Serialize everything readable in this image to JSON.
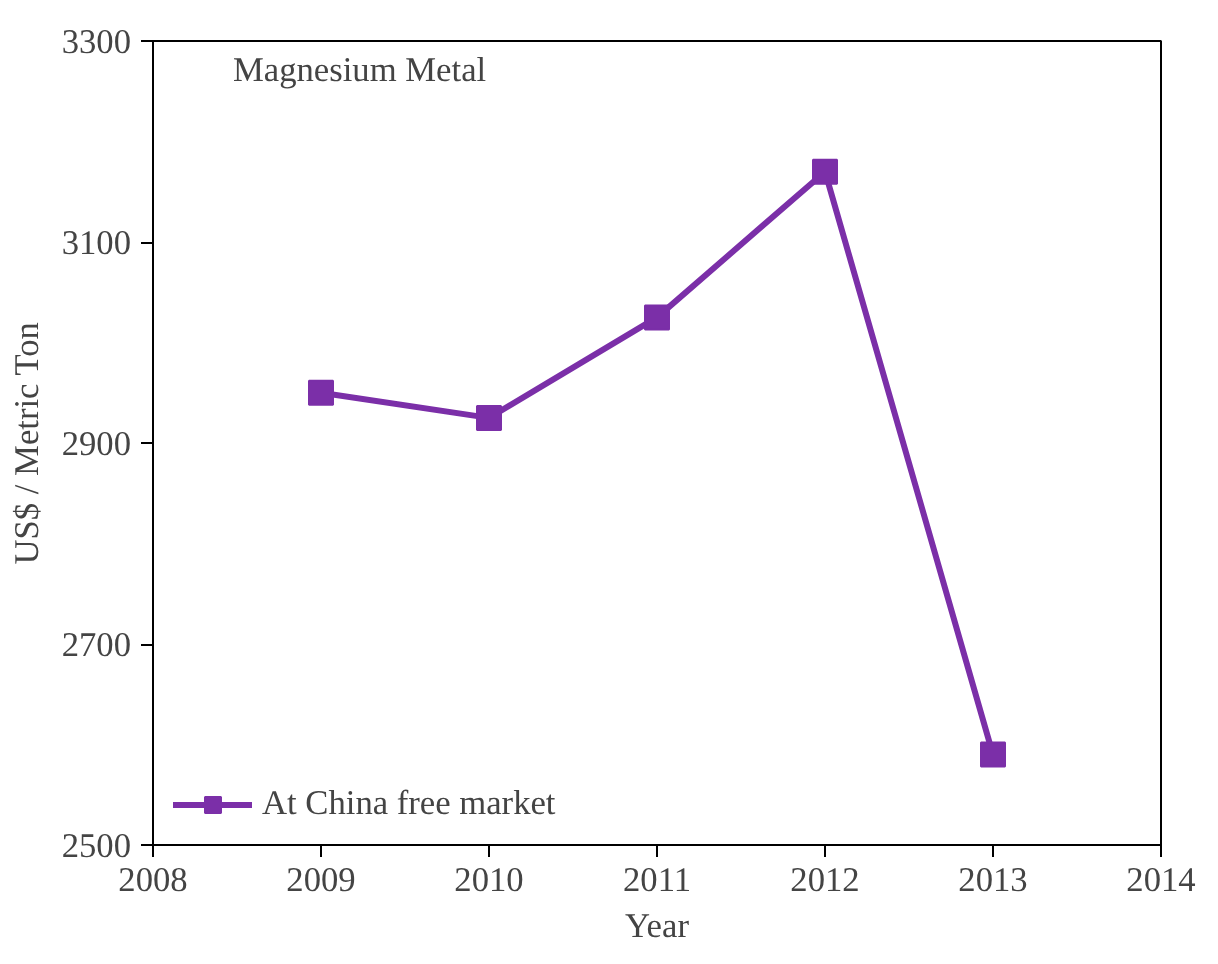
{
  "chart_data": {
    "type": "line",
    "title": "Magnesium Metal",
    "xlabel": "Year",
    "ylabel": "US$ / Metric Ton",
    "x": [
      2009,
      2010,
      2011,
      2012,
      2013
    ],
    "series": [
      {
        "name": "At China free market",
        "color": "#7b2fa8",
        "values": [
          2950,
          2925,
          3025,
          3170,
          2590
        ]
      }
    ],
    "xlim": [
      2008,
      2014
    ],
    "xticks": [
      2008,
      2009,
      2010,
      2011,
      2012,
      2013,
      2014
    ],
    "ylim": [
      2500,
      3300
    ],
    "yticks": [
      2500,
      2700,
      2900,
      3100,
      3300
    ],
    "marker": "square",
    "legend": "bottom left"
  }
}
